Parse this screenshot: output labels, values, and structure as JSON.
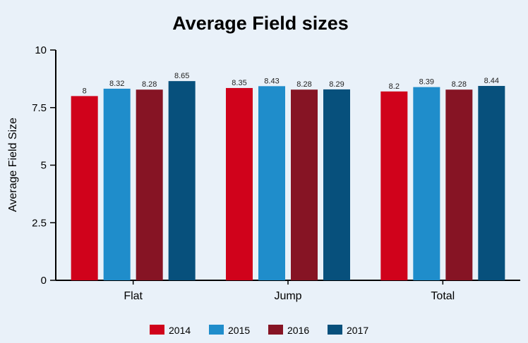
{
  "chart_data": {
    "type": "bar",
    "title": "Average Field sizes",
    "xlabel": "",
    "ylabel": "Average Field Size",
    "ylim": [
      0,
      10
    ],
    "yticks": [
      "0",
      "2.5",
      "5",
      "7.5",
      "10"
    ],
    "categories": [
      "Flat",
      "Jump",
      "Total"
    ],
    "series": [
      {
        "name": "2014",
        "color": "#d0021b",
        "values": [
          8,
          8.35,
          8.2
        ],
        "labels": [
          "8",
          "8.35",
          "8.2"
        ]
      },
      {
        "name": "2015",
        "color": "#1f8dcb",
        "values": [
          8.32,
          8.43,
          8.39
        ],
        "labels": [
          "8.32",
          "8.43",
          "8.39"
        ]
      },
      {
        "name": "2016",
        "color": "#861424",
        "values": [
          8.28,
          8.28,
          8.28
        ],
        "labels": [
          "8.28",
          "8.28",
          "8.28"
        ]
      },
      {
        "name": "2017",
        "color": "#07507c",
        "values": [
          8.65,
          8.29,
          8.44
        ],
        "labels": [
          "8.65",
          "8.29",
          "8.44"
        ]
      }
    ],
    "grid": false,
    "legend": "bottom"
  }
}
